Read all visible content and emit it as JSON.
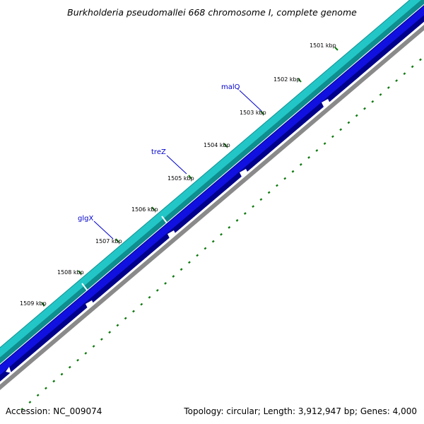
{
  "title": "Burkholderia pseudomallei 668 chromosome I, complete genome",
  "footer": {
    "accession": "Accession: NC_009074",
    "summary": "Topology: circular; Length: 3,912,947 bp; Genes: 4,000"
  },
  "ticks": [
    {
      "label": "1501 kbp"
    },
    {
      "label": "1502 kbp"
    },
    {
      "label": "1503 kbp"
    },
    {
      "label": "1504 kbp"
    },
    {
      "label": "1505 kbp"
    },
    {
      "label": "1506 kbp"
    },
    {
      "label": "1507 kbp"
    },
    {
      "label": "1508 kbp"
    },
    {
      "label": "1509 kbp"
    }
  ],
  "genes": [
    {
      "label": "malQ"
    },
    {
      "label": "treZ"
    },
    {
      "label": "glgX"
    }
  ],
  "colors": {
    "forward_track": "#22c6c6",
    "forward_track_dark": "#0e8e8e",
    "reverse_track": "#1010e0",
    "reverse_track_dark": "#00008a",
    "backbone": "#8a8a8a",
    "tick_marks": "#117a11",
    "gene_label": "#0000cc",
    "text": "#000000"
  }
}
